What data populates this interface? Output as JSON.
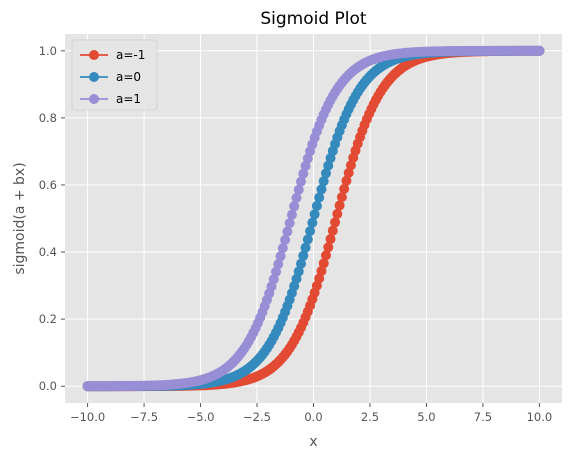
{
  "chart_data": {
    "type": "scatter",
    "title": "Sigmoid Plot",
    "xlabel": "x",
    "ylabel": "sigmoid(a + bx)",
    "xlim": [
      -11,
      11
    ],
    "ylim": [
      -0.05,
      1.05
    ],
    "x_ticks": [
      -10.0,
      -7.5,
      -5.0,
      -2.5,
      0.0,
      2.5,
      5.0,
      7.5,
      10.0
    ],
    "x_tick_labels": [
      "−10.0",
      "−7.5",
      "−5.0",
      "−2.5",
      "0.0",
      "2.5",
      "5.0",
      "7.5",
      "10.0"
    ],
    "y_ticks": [
      0.0,
      0.2,
      0.4,
      0.6,
      0.8,
      1.0
    ],
    "y_tick_labels": [
      "0.0",
      "0.2",
      "0.4",
      "0.6",
      "0.8",
      "1.0"
    ],
    "grid": true,
    "legend_position": "top-left",
    "style": "ggplot",
    "x_range": [
      -10,
      10
    ],
    "points_per_series": 200,
    "series": [
      {
        "name": "a=-1",
        "a": -1,
        "b": 1,
        "color": "#E24A33"
      },
      {
        "name": "a=0",
        "a": 0,
        "b": 1,
        "color": "#348ABD"
      },
      {
        "name": "a=1",
        "a": 1,
        "b": 1,
        "color": "#988ED5"
      }
    ]
  },
  "colors": {
    "plot_background": "#E5E5E5",
    "grid": "#FFFFFF",
    "tick_text": "#555555"
  }
}
